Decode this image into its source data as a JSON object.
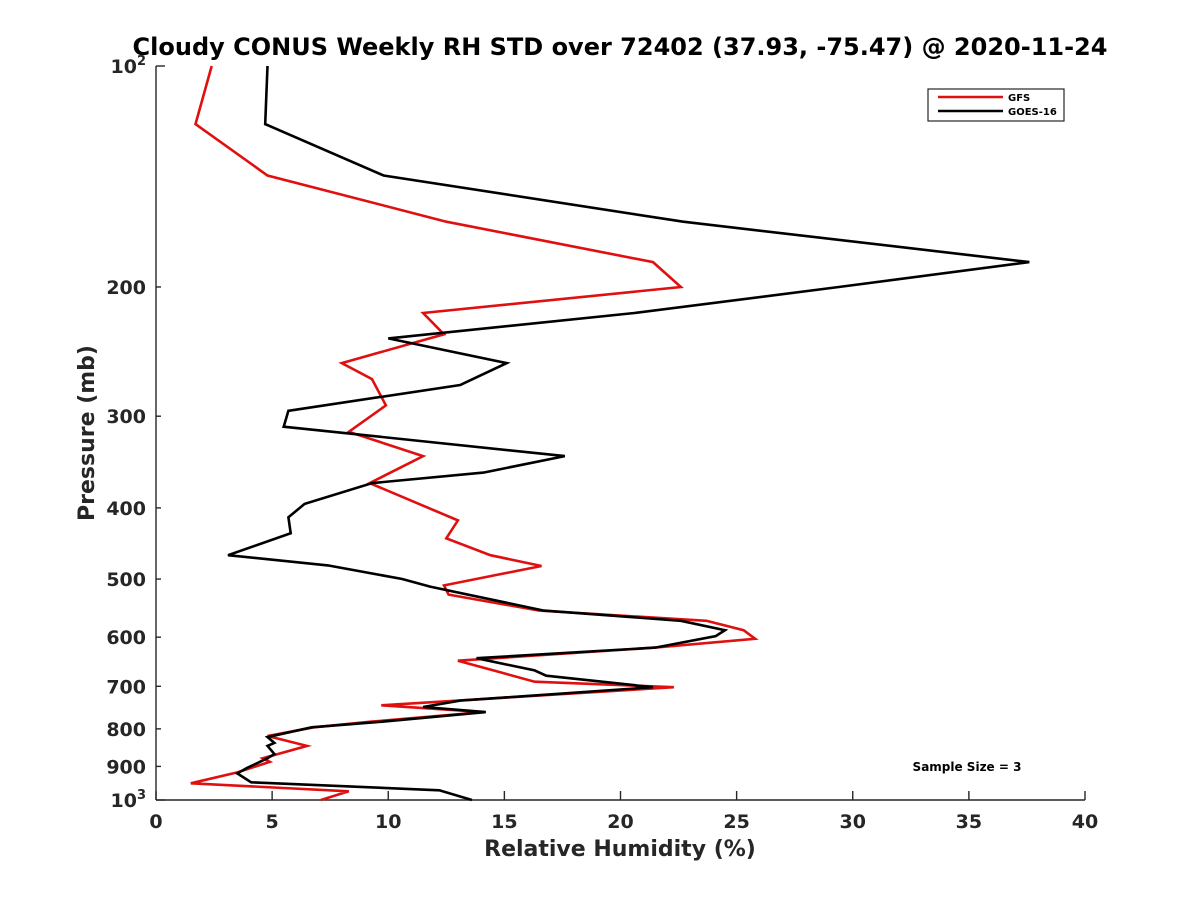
{
  "chart_data": {
    "type": "line",
    "title": "Cloudy CONUS Weekly RH STD over 72402 (37.93, -75.47) @ 2020-11-24",
    "xlabel": "Relative Humidity (%)",
    "ylabel": "Pressure (mb)",
    "xlim": [
      0,
      40
    ],
    "ylim": [
      100,
      1000
    ],
    "y_scale": "log",
    "y_reversed": true,
    "grid": false,
    "legend_position": "top-right",
    "x_ticks": [
      0,
      5,
      10,
      15,
      20,
      25,
      30,
      35,
      40
    ],
    "x_tick_labels": [
      "0",
      "5",
      "10",
      "15",
      "20",
      "25",
      "30",
      "35",
      "40"
    ],
    "y_ticks": [
      100,
      200,
      300,
      400,
      500,
      600,
      700,
      800,
      900,
      1000
    ],
    "y_tick_labels": [
      {
        "base": "10",
        "sup": "2"
      },
      {
        "base": "200",
        "sup": ""
      },
      {
        "base": "300",
        "sup": ""
      },
      {
        "base": "400",
        "sup": ""
      },
      {
        "base": "500",
        "sup": ""
      },
      {
        "base": "600",
        "sup": ""
      },
      {
        "base": "700",
        "sup": ""
      },
      {
        "base": "800",
        "sup": ""
      },
      {
        "base": "900",
        "sup": ""
      },
      {
        "base": "10",
        "sup": "3"
      }
    ],
    "annotation": "Sample Size = 3",
    "series": [
      {
        "name": "GFS",
        "color": "#e01010",
        "points": [
          [
            2.4,
            100
          ],
          [
            1.7,
            120
          ],
          [
            4.8,
            141
          ],
          [
            12.5,
            163
          ],
          [
            21.4,
            185
          ],
          [
            22.6,
            200
          ],
          [
            11.5,
            217
          ],
          [
            12.4,
            232
          ],
          [
            8.0,
            254
          ],
          [
            9.3,
            267
          ],
          [
            9.9,
            290
          ],
          [
            8.3,
            315
          ],
          [
            11.5,
            340
          ],
          [
            9.2,
            370
          ],
          [
            13.0,
            416
          ],
          [
            12.5,
            440
          ],
          [
            14.4,
            464
          ],
          [
            16.6,
            480
          ],
          [
            12.4,
            510
          ],
          [
            12.6,
            525
          ],
          [
            16.5,
            552
          ],
          [
            23.7,
            570
          ],
          [
            25.3,
            587
          ],
          [
            25.8,
            603
          ],
          [
            21.5,
            620
          ],
          [
            13.0,
            646
          ],
          [
            14.9,
            671
          ],
          [
            16.3,
            690
          ],
          [
            22.3,
            702
          ],
          [
            9.7,
            743
          ],
          [
            14.1,
            759
          ],
          [
            9.3,
            782
          ],
          [
            6.8,
            796
          ],
          [
            4.8,
            818
          ],
          [
            6.5,
            844
          ],
          [
            4.6,
            877
          ],
          [
            4.9,
            887
          ],
          [
            3.5,
            917
          ],
          [
            1.5,
            949
          ],
          [
            8.3,
            973
          ],
          [
            7.1,
            1000
          ]
        ]
      },
      {
        "name": "GOES-16",
        "color": "#000000",
        "points": [
          [
            4.8,
            100
          ],
          [
            4.7,
            120
          ],
          [
            9.8,
            141
          ],
          [
            22.7,
            163
          ],
          [
            37.6,
            185
          ],
          [
            29.4,
            200
          ],
          [
            20.6,
            217
          ],
          [
            10.0,
            235
          ],
          [
            15.1,
            254
          ],
          [
            13.1,
            272
          ],
          [
            5.7,
            295
          ],
          [
            5.5,
            310
          ],
          [
            17.6,
            340
          ],
          [
            14.1,
            358
          ],
          [
            9.3,
            370
          ],
          [
            6.4,
            395
          ],
          [
            5.7,
            412
          ],
          [
            5.8,
            433
          ],
          [
            3.1,
            464
          ],
          [
            7.4,
            479
          ],
          [
            10.6,
            500
          ],
          [
            11.8,
            512
          ],
          [
            16.7,
            552
          ],
          [
            22.6,
            570
          ],
          [
            24.5,
            587
          ],
          [
            24.1,
            598
          ],
          [
            21.5,
            620
          ],
          [
            13.8,
            641
          ],
          [
            16.3,
            666
          ],
          [
            16.8,
            677
          ],
          [
            21.4,
            702
          ],
          [
            13.1,
            732
          ],
          [
            11.5,
            747
          ],
          [
            14.2,
            759
          ],
          [
            9.8,
            782
          ],
          [
            6.7,
            796
          ],
          [
            4.8,
            821
          ],
          [
            5.1,
            836
          ],
          [
            4.8,
            844
          ],
          [
            5.1,
            866
          ],
          [
            4.8,
            877
          ],
          [
            3.9,
            905
          ],
          [
            3.5,
            920
          ],
          [
            4.1,
            946
          ],
          [
            12.2,
            970
          ],
          [
            13.6,
            1000
          ]
        ]
      }
    ]
  }
}
